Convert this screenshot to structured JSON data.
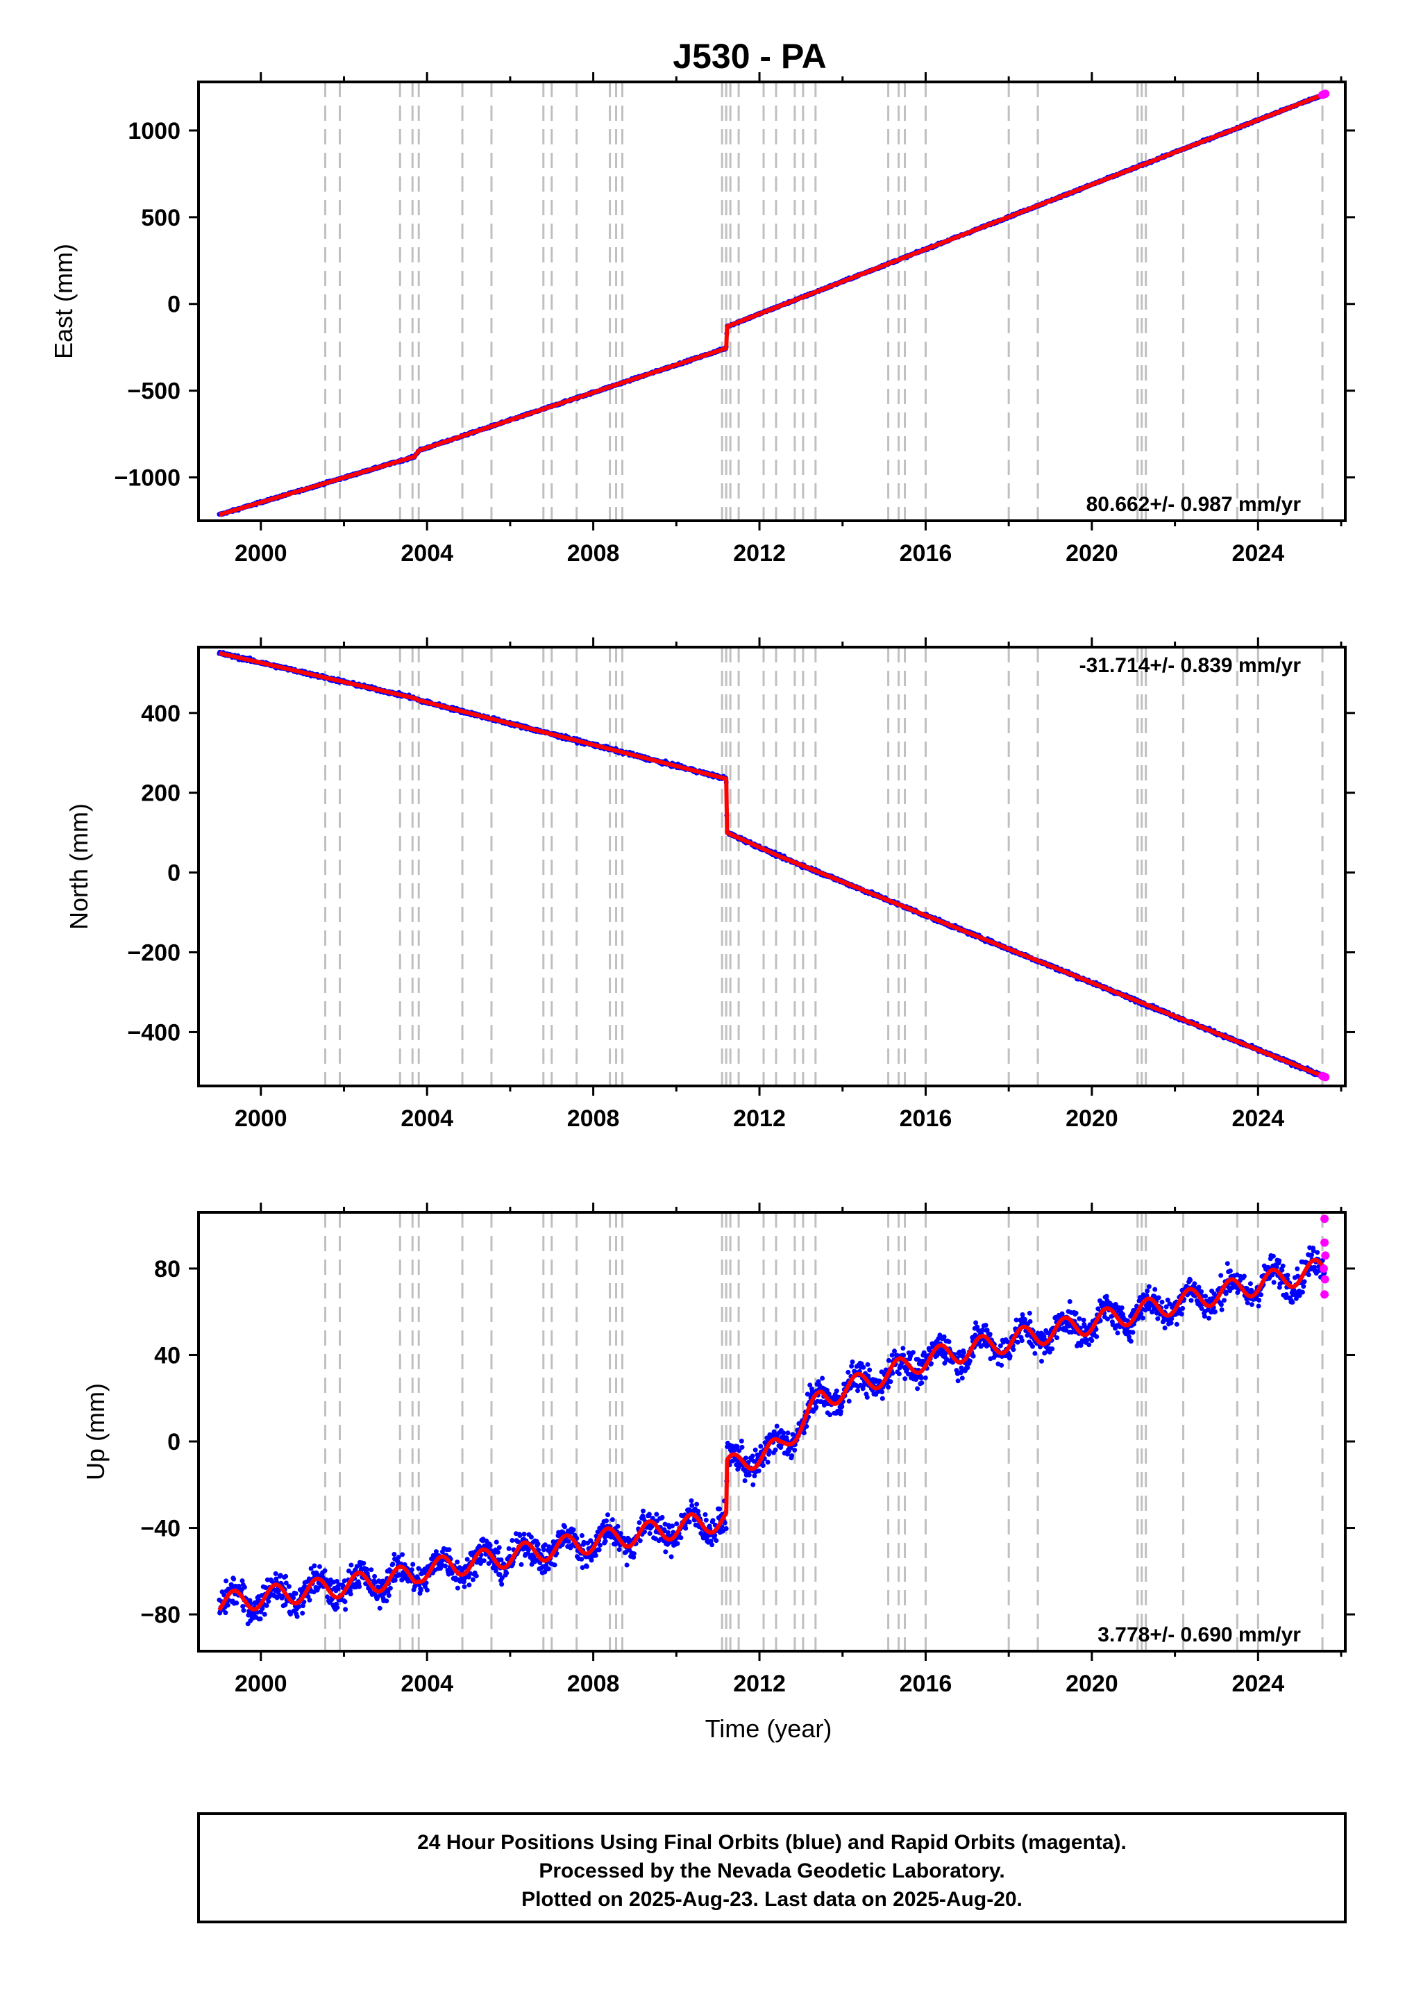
{
  "title": "J530 - PA",
  "xlabel": "Time (year)",
  "x_ticks": [
    "2000",
    "2004",
    "2008",
    "2012",
    "2016",
    "2020",
    "2024"
  ],
  "colors": {
    "final_orbits": "#0000ff",
    "rapid_orbits": "#ff00ff",
    "model": "#ff0000",
    "steps": "#c0c0c0",
    "frame": "#000000"
  },
  "caption": {
    "line1": "24 Hour Positions Using Final Orbits (blue) and Rapid Orbits (magenta).",
    "line2": "Processed by the Nevada Geodetic Laboratory.",
    "line3": "Plotted on 2025-Aug-23. Last data on 2025-Aug-20."
  },
  "chart_data": [
    {
      "type": "scatter",
      "component": "east",
      "ylabel": "East (mm)",
      "y_ticks": [
        "1000",
        "500",
        "0",
        "−500",
        "−1000"
      ],
      "rate_label": "80.662+/- 0.987 mm/yr",
      "rate_position": "bottom-right",
      "xlim": [
        1998.5,
        2026.1
      ],
      "ylim": [
        -1250,
        1280
      ],
      "x_tick_values": [
        2000,
        2004,
        2008,
        2012,
        2016,
        2020,
        2024
      ],
      "y_tick_values": [
        1000,
        500,
        0,
        -500,
        -1000
      ],
      "series": [
        {
          "role": "trend",
          "points": [
            [
              1999.0,
              -1215
            ],
            [
              2003.7,
              -880
            ],
            [
              2003.8,
              -845
            ],
            [
              2011.2,
              -255
            ],
            [
              2011.22,
              -130
            ],
            [
              2025.6,
              1210
            ]
          ]
        }
      ],
      "seasonal_amplitude": 0,
      "scatter_noise": 4,
      "rapid_points": [
        [
          2025.55,
          1205
        ],
        [
          2025.6,
          1210
        ],
        [
          2025.62,
          1212
        ]
      ]
    },
    {
      "type": "scatter",
      "component": "north",
      "ylabel": "North (mm)",
      "y_ticks": [
        "400",
        "200",
        "0",
        "−200",
        "−400"
      ],
      "rate_label": "-31.714+/- 0.839 mm/yr",
      "rate_position": "top-right",
      "xlim": [
        1998.5,
        2026.1
      ],
      "ylim": [
        -535,
        565
      ],
      "x_tick_values": [
        2000,
        2004,
        2008,
        2012,
        2016,
        2020,
        2024
      ],
      "y_tick_values": [
        400,
        200,
        0,
        -200,
        -400
      ],
      "series": [
        {
          "role": "trend",
          "points": [
            [
              1999.0,
              550
            ],
            [
              2003.7,
              437
            ],
            [
              2003.8,
              432
            ],
            [
              2011.2,
              235
            ],
            [
              2011.22,
              100
            ],
            [
              2012.5,
              40
            ],
            [
              2025.6,
              -512
            ]
          ]
        }
      ],
      "seasonal_amplitude": 0,
      "scatter_noise": 3,
      "rapid_points": [
        [
          2025.55,
          -510
        ],
        [
          2025.6,
          -512
        ],
        [
          2025.62,
          -513
        ]
      ]
    },
    {
      "type": "scatter",
      "component": "up",
      "ylabel": "Up (mm)",
      "y_ticks": [
        "80",
        "40",
        "0",
        "−40",
        "−80"
      ],
      "rate_label": "3.778+/- 0.690 mm/yr",
      "rate_position": "bottom-right",
      "xlim": [
        1998.5,
        2026.1
      ],
      "ylim": [
        -97,
        106
      ],
      "x_tick_values": [
        2000,
        2004,
        2008,
        2012,
        2016,
        2020,
        2024
      ],
      "y_tick_values": [
        80,
        40,
        0,
        -40,
        -80
      ],
      "series": [
        {
          "role": "trend",
          "points": [
            [
              1999.0,
              -75
            ],
            [
              2003.7,
              -62
            ],
            [
              2003.8,
              -60
            ],
            [
              2011.2,
              -36
            ],
            [
              2011.22,
              -12
            ],
            [
              2012.5,
              -3
            ],
            [
              2013.5,
              20
            ],
            [
              2016.0,
              38
            ],
            [
              2020.0,
              55
            ],
            [
              2025.6,
              80
            ]
          ]
        }
      ],
      "seasonal_amplitude": 5,
      "scatter_noise": 5,
      "rapid_points": [
        [
          2025.6,
          103
        ],
        [
          2025.6,
          92
        ],
        [
          2025.62,
          86
        ],
        [
          2025.58,
          80
        ],
        [
          2025.61,
          75
        ],
        [
          2025.6,
          68
        ]
      ]
    }
  ],
  "step_lines": [
    2001.55,
    2001.9,
    2003.35,
    2003.65,
    2003.8,
    2004.85,
    2005.55,
    2006.8,
    2007.0,
    2007.6,
    2008.4,
    2008.55,
    2008.7,
    2011.1,
    2011.2,
    2011.3,
    2011.5,
    2012.1,
    2012.4,
    2012.85,
    2013.05,
    2013.35,
    2015.1,
    2015.35,
    2015.5,
    2016.0,
    2018.0,
    2018.7,
    2021.1,
    2021.2,
    2021.3,
    2022.2,
    2023.5,
    2024.0,
    2025.55
  ]
}
